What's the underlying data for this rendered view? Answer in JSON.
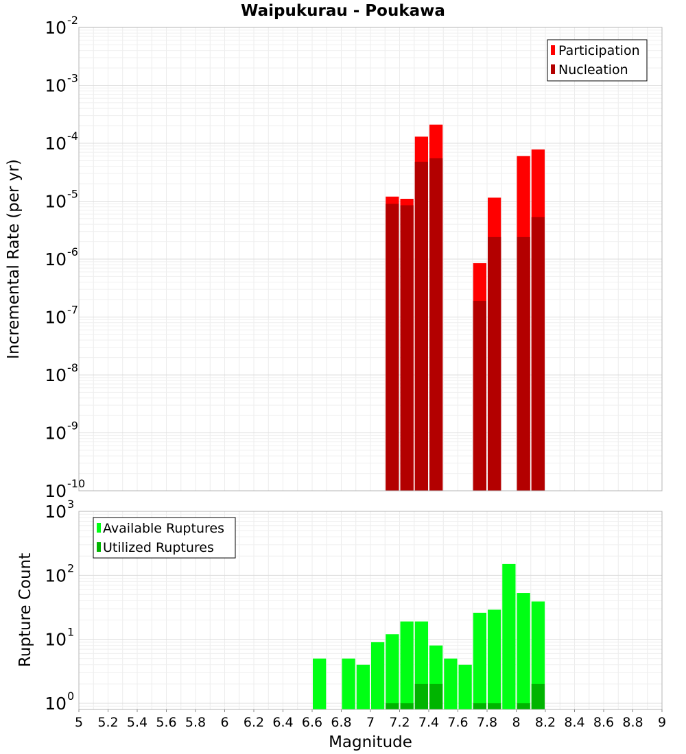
{
  "chart_data": [
    {
      "type": "bar",
      "title": "Waipukurau - Poukawa",
      "xlabel": "",
      "ylabel": "Incremental Rate (per yr)",
      "yscale": "log",
      "ylim": [
        1e-10,
        0.01
      ],
      "xlim": [
        5,
        9
      ],
      "y_ticks": [
        {
          "base": "10",
          "exp": "-10"
        },
        {
          "base": "10",
          "exp": "-9"
        },
        {
          "base": "10",
          "exp": "-8"
        },
        {
          "base": "10",
          "exp": "-7"
        },
        {
          "base": "10",
          "exp": "-6"
        },
        {
          "base": "10",
          "exp": "-5"
        },
        {
          "base": "10",
          "exp": "-4"
        },
        {
          "base": "10",
          "exp": "-3"
        },
        {
          "base": "10",
          "exp": "-2"
        }
      ],
      "grid": true,
      "legend_position": "top-right",
      "series": [
        {
          "name": "Participation",
          "color": "#ff0000",
          "points": [
            {
              "x": 7.15,
              "y": 1.2e-05
            },
            {
              "x": 7.25,
              "y": 1.1e-05
            },
            {
              "x": 7.35,
              "y": 0.00013
            },
            {
              "x": 7.45,
              "y": 0.00021
            },
            {
              "x": 7.75,
              "y": 8.5e-07
            },
            {
              "x": 7.85,
              "y": 1.15e-05
            },
            {
              "x": 8.05,
              "y": 6e-05
            },
            {
              "x": 8.15,
              "y": 7.8e-05
            }
          ]
        },
        {
          "name": "Nucleation",
          "color": "#b30000",
          "points": [
            {
              "x": 7.15,
              "y": 9e-06
            },
            {
              "x": 7.25,
              "y": 8.5e-06
            },
            {
              "x": 7.35,
              "y": 4.8e-05
            },
            {
              "x": 7.45,
              "y": 5.5e-05
            },
            {
              "x": 7.75,
              "y": 1.9e-07
            },
            {
              "x": 7.85,
              "y": 2.4e-06
            },
            {
              "x": 8.05,
              "y": 2.4e-06
            },
            {
              "x": 8.15,
              "y": 5.3e-06
            }
          ]
        }
      ]
    },
    {
      "type": "bar",
      "title": "",
      "xlabel": "Magnitude",
      "ylabel": "Rupture Count",
      "yscale": "log",
      "ylim": [
        0.8,
        1000
      ],
      "xlim": [
        5,
        9
      ],
      "x_ticks": [
        "5",
        "5.2",
        "5.4",
        "5.6",
        "5.8",
        "6",
        "6.2",
        "6.4",
        "6.6",
        "6.8",
        "7",
        "7.2",
        "7.4",
        "7.6",
        "7.8",
        "8",
        "8.2",
        "8.4",
        "8.6",
        "8.8",
        "9"
      ],
      "y_ticks": [
        {
          "base": "10",
          "exp": "0"
        },
        {
          "base": "10",
          "exp": "1"
        },
        {
          "base": "10",
          "exp": "2"
        },
        {
          "base": "10",
          "exp": "3"
        }
      ],
      "grid": true,
      "legend_position": "top-left",
      "series": [
        {
          "name": "Available Ruptures",
          "color": "#00ff14",
          "points": [
            {
              "x": 6.65,
              "y": 5
            },
            {
              "x": 6.85,
              "y": 5
            },
            {
              "x": 6.95,
              "y": 4
            },
            {
              "x": 7.05,
              "y": 9
            },
            {
              "x": 7.15,
              "y": 12
            },
            {
              "x": 7.25,
              "y": 19
            },
            {
              "x": 7.35,
              "y": 19
            },
            {
              "x": 7.45,
              "y": 8
            },
            {
              "x": 7.55,
              "y": 5
            },
            {
              "x": 7.65,
              "y": 4
            },
            {
              "x": 7.75,
              "y": 26
            },
            {
              "x": 7.85,
              "y": 29
            },
            {
              "x": 7.95,
              "y": 150
            },
            {
              "x": 8.05,
              "y": 53
            },
            {
              "x": 8.15,
              "y": 39
            }
          ]
        },
        {
          "name": "Utilized Ruptures",
          "color": "#00b400",
          "points": [
            {
              "x": 7.15,
              "y": 1
            },
            {
              "x": 7.25,
              "y": 1
            },
            {
              "x": 7.35,
              "y": 2
            },
            {
              "x": 7.45,
              "y": 2
            },
            {
              "x": 7.75,
              "y": 1
            },
            {
              "x": 7.85,
              "y": 1
            },
            {
              "x": 8.05,
              "y": 1
            },
            {
              "x": 8.15,
              "y": 2
            }
          ]
        }
      ]
    }
  ]
}
